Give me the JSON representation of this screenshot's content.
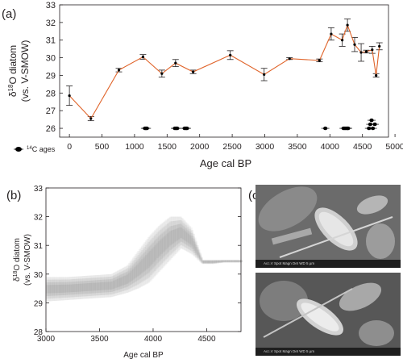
{
  "panel_labels": {
    "a": "(a)",
    "b": "(b)",
    "c": "(c)"
  },
  "legend_label_prefix": "14",
  "legend_label_text": "C ages",
  "colors": {
    "line": "#e0642a",
    "points": "#000000",
    "axis": "#231f20"
  },
  "chart_data": [
    {
      "type": "line",
      "panel": "(a)",
      "xlabel": "Age cal BP",
      "ylabel_line1": "δ18O diatom",
      "ylabel_line2": "(vs. V-SMOW)",
      "ylabel_sup": "18",
      "xlim": [
        -150,
        4900
      ],
      "ylim": [
        25.5,
        33
      ],
      "xticks": [
        "0",
        "500",
        "1000",
        "1500",
        "2000",
        "2500",
        "3000",
        "3500",
        "4000",
        "4500",
        "5000"
      ],
      "yticks": [
        "26",
        "27",
        "28",
        "29",
        "30",
        "31",
        "32",
        "33"
      ],
      "series": [
        {
          "x": [
            0,
            330,
            760,
            1130,
            1420,
            1630,
            1900,
            2470,
            2990,
            3380,
            3840,
            4020,
            4190,
            4270,
            4380,
            4480,
            4560,
            4650,
            4710,
            4760
          ],
          "y": [
            27.85,
            26.55,
            29.3,
            30.05,
            29.1,
            29.7,
            29.2,
            30.15,
            29.05,
            29.95,
            29.85,
            31.35,
            31.0,
            31.85,
            30.75,
            30.3,
            30.35,
            30.45,
            29.0,
            30.65
          ],
          "err": [
            0.55,
            0.12,
            0.1,
            0.13,
            0.2,
            0.2,
            0.1,
            0.25,
            0.35,
            0.05,
            0.08,
            0.35,
            0.35,
            0.35,
            0.4,
            0.5,
            0.08,
            0.2,
            0.1,
            0.2
          ]
        }
      ],
      "c14_ages": [
        1160,
        1175,
        1190,
        1620,
        1640,
        1655,
        1770,
        1790,
        1805,
        3930,
        4210,
        4230,
        4250,
        4270,
        4280,
        4600,
        4620,
        4640,
        4660,
        4690
      ]
    },
    {
      "type": "heatmap",
      "panel": "(b)",
      "xlabel": "Age cal BP",
      "ylabel_line1": "δ18O diatom",
      "ylabel_line2": "(vs. V-SMOW)",
      "ylabel_sup": "18",
      "xlim": [
        3000,
        4820
      ],
      "ylim": [
        28,
        33
      ],
      "xticks": [
        "3000",
        "3500",
        "4000",
        "4500"
      ],
      "yticks": [
        "28",
        "29",
        "30",
        "31",
        "32",
        "33"
      ],
      "band": {
        "x": [
          3000,
          3200,
          3400,
          3600,
          3750,
          3850,
          3950,
          4050,
          4150,
          4250,
          4350,
          4450,
          4550,
          4650,
          4820
        ],
        "low": [
          29.05,
          29.1,
          29.15,
          29.2,
          29.35,
          29.5,
          29.7,
          30.1,
          30.5,
          30.9,
          30.7,
          30.35,
          30.35,
          30.4,
          30.4
        ],
        "high": [
          29.9,
          29.9,
          29.95,
          30.0,
          30.3,
          30.8,
          31.3,
          31.7,
          32.0,
          32.0,
          31.6,
          30.5,
          30.5,
          30.5,
          30.5
        ]
      }
    }
  ],
  "sem_images": [
    {
      "bar_text": "Acc.V   Spot Magn   Det  WD        5 µm"
    },
    {
      "bar_text": "Acc.V   Spot Magn   Det  WD        5 µm"
    }
  ]
}
